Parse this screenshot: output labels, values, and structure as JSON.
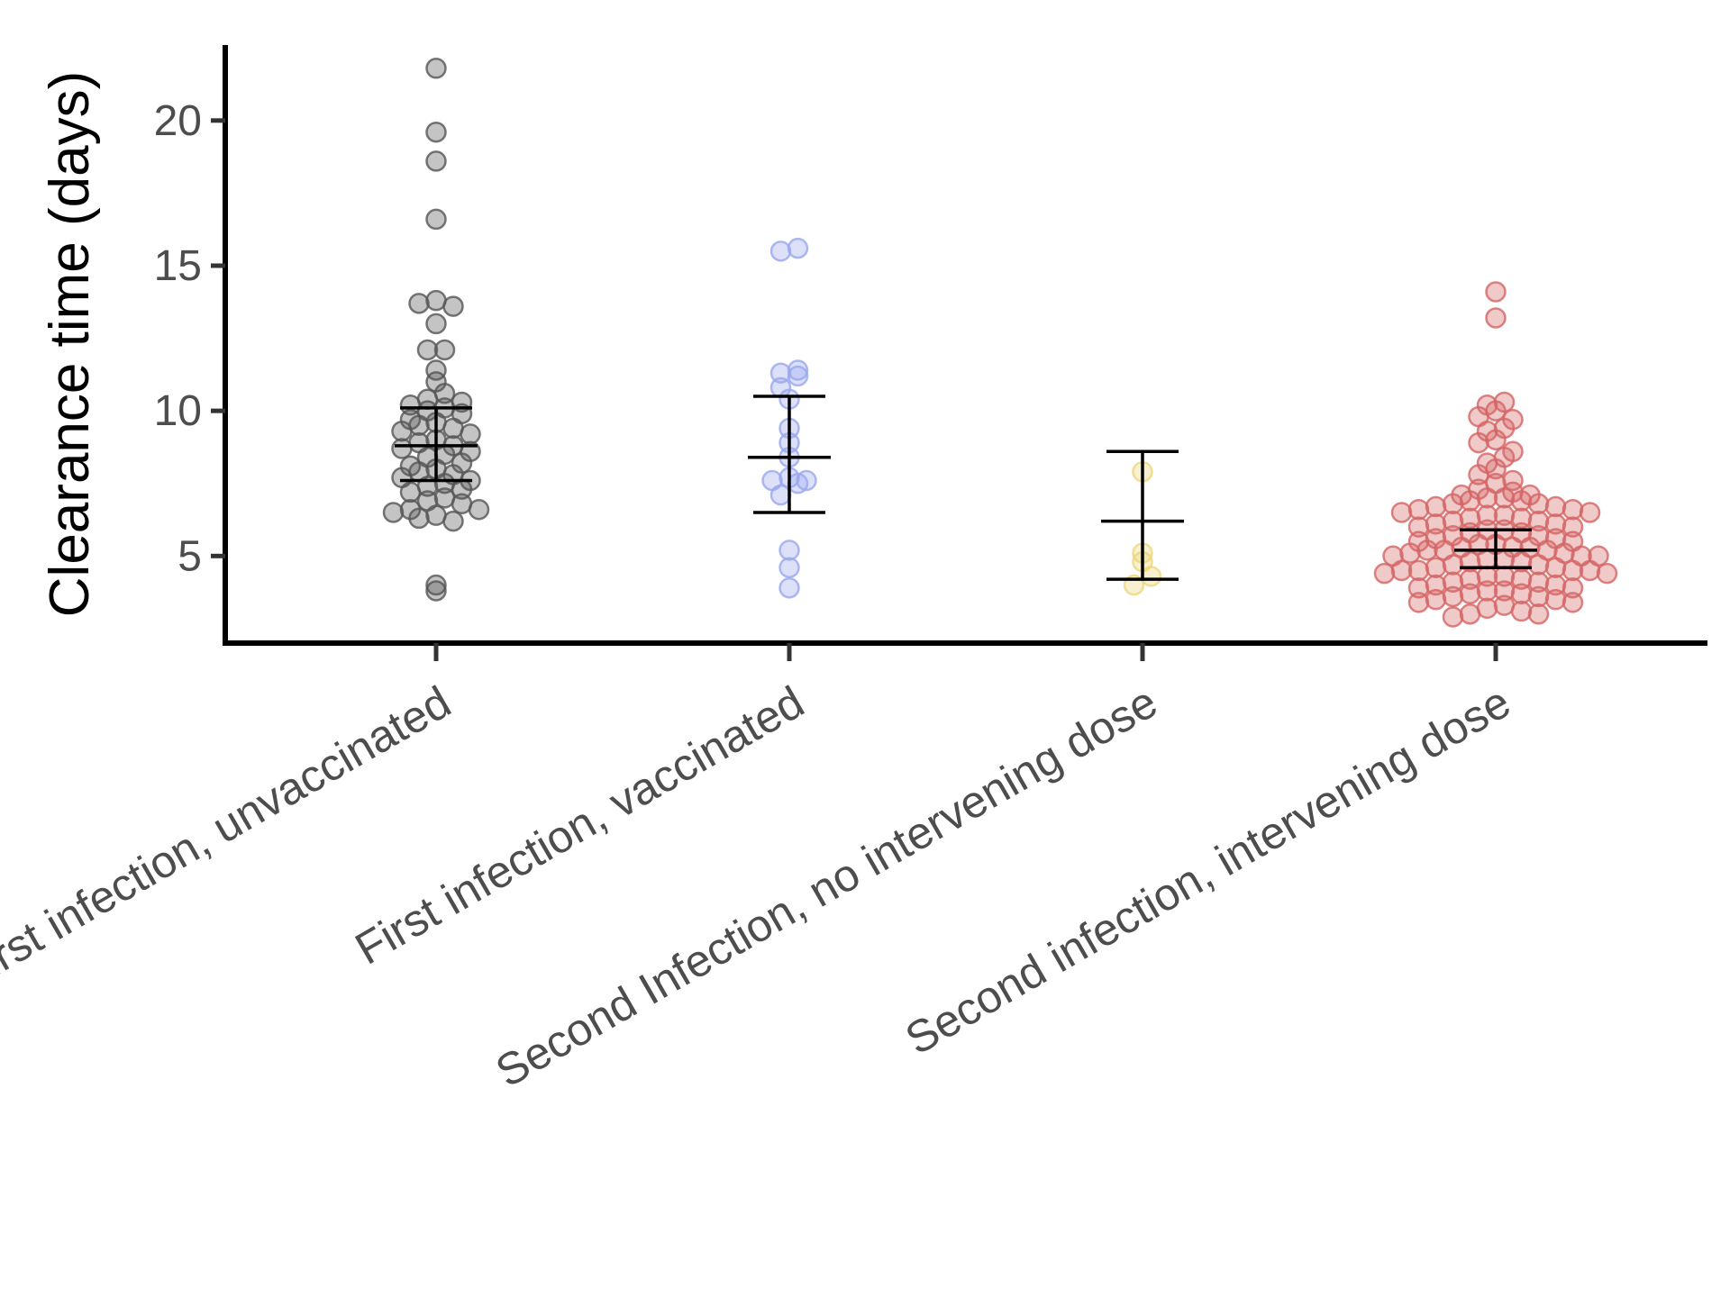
{
  "chart_data": {
    "type": "scatter",
    "ylabel": "Clearance time (days)",
    "xlabel": "",
    "title": "",
    "ylim": [
      2,
      22.6
    ],
    "yticks": [
      5,
      10,
      15,
      20
    ],
    "grid": false,
    "categories": [
      "First infection, unvaccinated",
      "First infection, vaccinated",
      "Second Infection, no intervening dose",
      "Second infection, intervening dose"
    ],
    "colors": [
      "#555555",
      "#9aa7ee",
      "#ecd77a",
      "#d46464"
    ],
    "series": [
      {
        "category": "First infection, unvaccinated",
        "mean": 8.8,
        "ci_low": 7.6,
        "ci_high": 10.1,
        "points": [
          21.8,
          19.6,
          18.6,
          16.6,
          13.8,
          13.7,
          13.6,
          13.0,
          12.1,
          12.1,
          11.4,
          11.0,
          10.6,
          10.4,
          10.3,
          10.2,
          10.1,
          10.0,
          9.9,
          9.7,
          9.6,
          9.5,
          9.4,
          9.3,
          9.2,
          9.0,
          8.9,
          8.8,
          8.7,
          8.6,
          8.5,
          8.4,
          8.2,
          8.1,
          8.0,
          7.9,
          7.8,
          7.7,
          7.6,
          7.5,
          7.4,
          7.3,
          7.2,
          7.0,
          6.9,
          6.8,
          6.6,
          6.6,
          6.5,
          6.4,
          6.3,
          6.2,
          4.0,
          3.8
        ]
      },
      {
        "category": "First infection, vaccinated",
        "mean": 8.4,
        "ci_low": 6.5,
        "ci_high": 10.5,
        "points": [
          15.6,
          15.5,
          11.4,
          11.3,
          11.2,
          10.8,
          10.4,
          9.4,
          8.9,
          8.4,
          7.7,
          7.6,
          7.6,
          7.5,
          7.1,
          5.2,
          4.6,
          3.9
        ]
      },
      {
        "category": "Second Infection, no intervening dose",
        "mean": 6.2,
        "ci_low": 4.2,
        "ci_high": 8.6,
        "points": [
          7.9,
          5.1,
          4.8,
          4.3,
          4.0
        ]
      },
      {
        "category": "Second infection, intervening dose",
        "mean": 5.2,
        "ci_low": 4.6,
        "ci_high": 5.9,
        "points": [
          14.1,
          13.2,
          10.3,
          10.2,
          10.0,
          9.8,
          9.7,
          9.4,
          9.3,
          9.0,
          8.9,
          8.6,
          8.4,
          8.2,
          8.0,
          7.8,
          7.6,
          7.5,
          7.3,
          7.2,
          7.1,
          7.1,
          7.0,
          7.0,
          6.9,
          6.9,
          6.8,
          6.8,
          6.7,
          6.7,
          6.6,
          6.6,
          6.5,
          6.5,
          6.4,
          6.4,
          6.3,
          6.3,
          6.2,
          6.2,
          6.1,
          6.1,
          6.0,
          6.0,
          5.9,
          5.9,
          5.8,
          5.8,
          5.7,
          5.7,
          5.6,
          5.6,
          5.5,
          5.5,
          5.4,
          5.4,
          5.3,
          5.3,
          5.3,
          5.2,
          5.2,
          5.2,
          5.1,
          5.1,
          5.0,
          5.0,
          5.0,
          4.9,
          4.9,
          4.8,
          4.8,
          4.7,
          4.7,
          4.6,
          4.6,
          4.5,
          4.5,
          4.5,
          4.5,
          4.4,
          4.4,
          4.3,
          4.3,
          4.2,
          4.2,
          4.1,
          4.1,
          4.0,
          4.0,
          3.9,
          3.9,
          3.8,
          3.8,
          3.7,
          3.7,
          3.6,
          3.6,
          3.5,
          3.5,
          3.4,
          3.4,
          3.3,
          3.2,
          3.1,
          3.0,
          3.0,
          2.9
        ]
      }
    ]
  }
}
